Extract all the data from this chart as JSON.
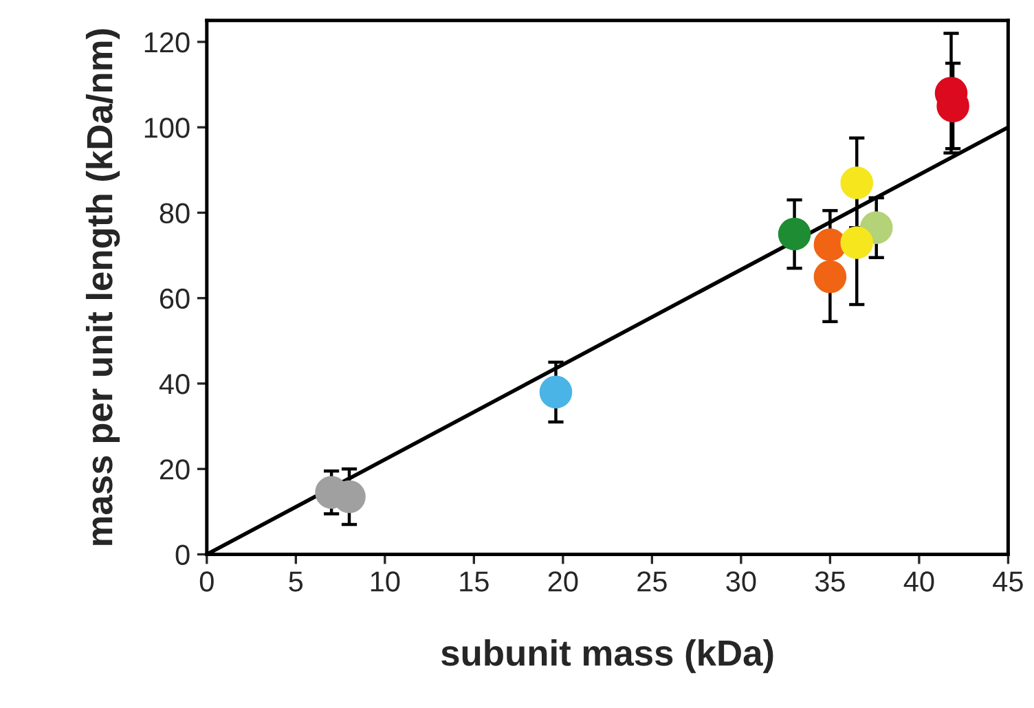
{
  "chart_data": {
    "type": "scatter",
    "xlabel": "subunit mass (kDa)",
    "ylabel": "mass per unit length (kDa/nm)",
    "xlim": [
      0,
      45
    ],
    "ylim": [
      0,
      125
    ],
    "xticks": [
      0,
      5,
      10,
      15,
      20,
      25,
      30,
      35,
      40,
      45
    ],
    "yticks": [
      0,
      20,
      40,
      60,
      80,
      100,
      120
    ],
    "grid": false,
    "legend": false,
    "marker": "circle",
    "series": [
      {
        "type": "line",
        "marker": "none",
        "color": "#000000",
        "x": [
          0,
          45
        ],
        "values": [
          0,
          100
        ]
      },
      {
        "color": "#a0a0a0",
        "x": [
          7.0
        ],
        "values": [
          14.5
        ],
        "errors": [
          5
        ]
      },
      {
        "color": "#a0a0a0",
        "x": [
          8.0
        ],
        "values": [
          13.5
        ],
        "errors": [
          6.5
        ]
      },
      {
        "color": "#4ab4e6",
        "x": [
          19.6
        ],
        "values": [
          38
        ],
        "errors": [
          7
        ]
      },
      {
        "color": "#1e8c32",
        "x": [
          33.0
        ],
        "values": [
          75
        ],
        "errors": [
          8
        ]
      },
      {
        "color": "#b4d278",
        "x": [
          37.6
        ],
        "values": [
          76.5
        ],
        "errors": [
          7
        ]
      },
      {
        "color": "#f06414",
        "x": [
          35.0
        ],
        "values": [
          72.5
        ],
        "errors": [
          8
        ]
      },
      {
        "color": "#f06414",
        "x": [
          35.0
        ],
        "values": [
          65
        ],
        "errors": [
          10.5
        ]
      },
      {
        "color": "#f5e61e",
        "x": [
          36.5
        ],
        "values": [
          87
        ],
        "errors": [
          10.5
        ]
      },
      {
        "color": "#f5e61e",
        "x": [
          36.5
        ],
        "values": [
          73
        ],
        "errors": [
          14.5
        ]
      },
      {
        "color": "#dc0a1e",
        "x": [
          41.8
        ],
        "values": [
          108
        ],
        "errors": [
          14
        ]
      },
      {
        "color": "#dc0a1e",
        "x": [
          41.9
        ],
        "values": [
          105
        ],
        "errors": [
          10
        ]
      }
    ]
  }
}
